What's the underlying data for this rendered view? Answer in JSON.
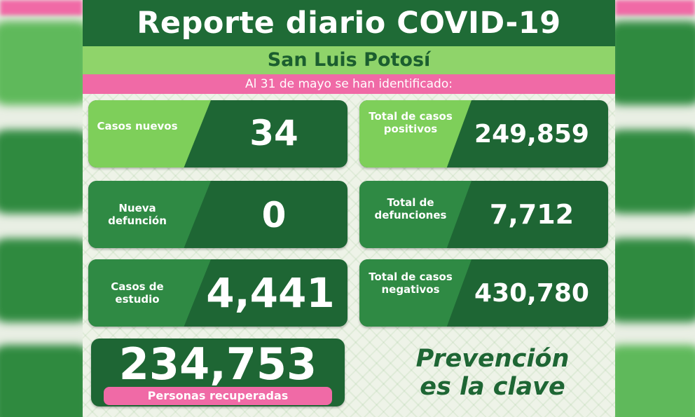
{
  "header": {
    "title": "Reporte diario COVID-19",
    "subtitle": "San Luis Potosí",
    "date_line": "Al 31 de mayo se han identificado:"
  },
  "stats": {
    "new_cases": {
      "label": "Casos nuevos",
      "value": "34"
    },
    "new_deaths": {
      "label": "Nueva defunción",
      "value": "0"
    },
    "study_cases": {
      "label": "Casos de estudio",
      "value": "4,441"
    },
    "total_positive": {
      "label": "Total de casos positivos",
      "value": "249,859"
    },
    "total_deaths": {
      "label": "Total de defunciones",
      "value": "7,712"
    },
    "total_negative": {
      "label": "Total de casos negativos",
      "value": "430,780"
    }
  },
  "recovered": {
    "value": "234,753",
    "label": "Personas recuperadas"
  },
  "slogan": {
    "line1": "Prevención",
    "line2": "es la clave"
  },
  "colors": {
    "dark_green": "#1e6634",
    "light_green": "#7ecf5a",
    "pink": "#f06aa6",
    "background": "#eef3e8"
  }
}
